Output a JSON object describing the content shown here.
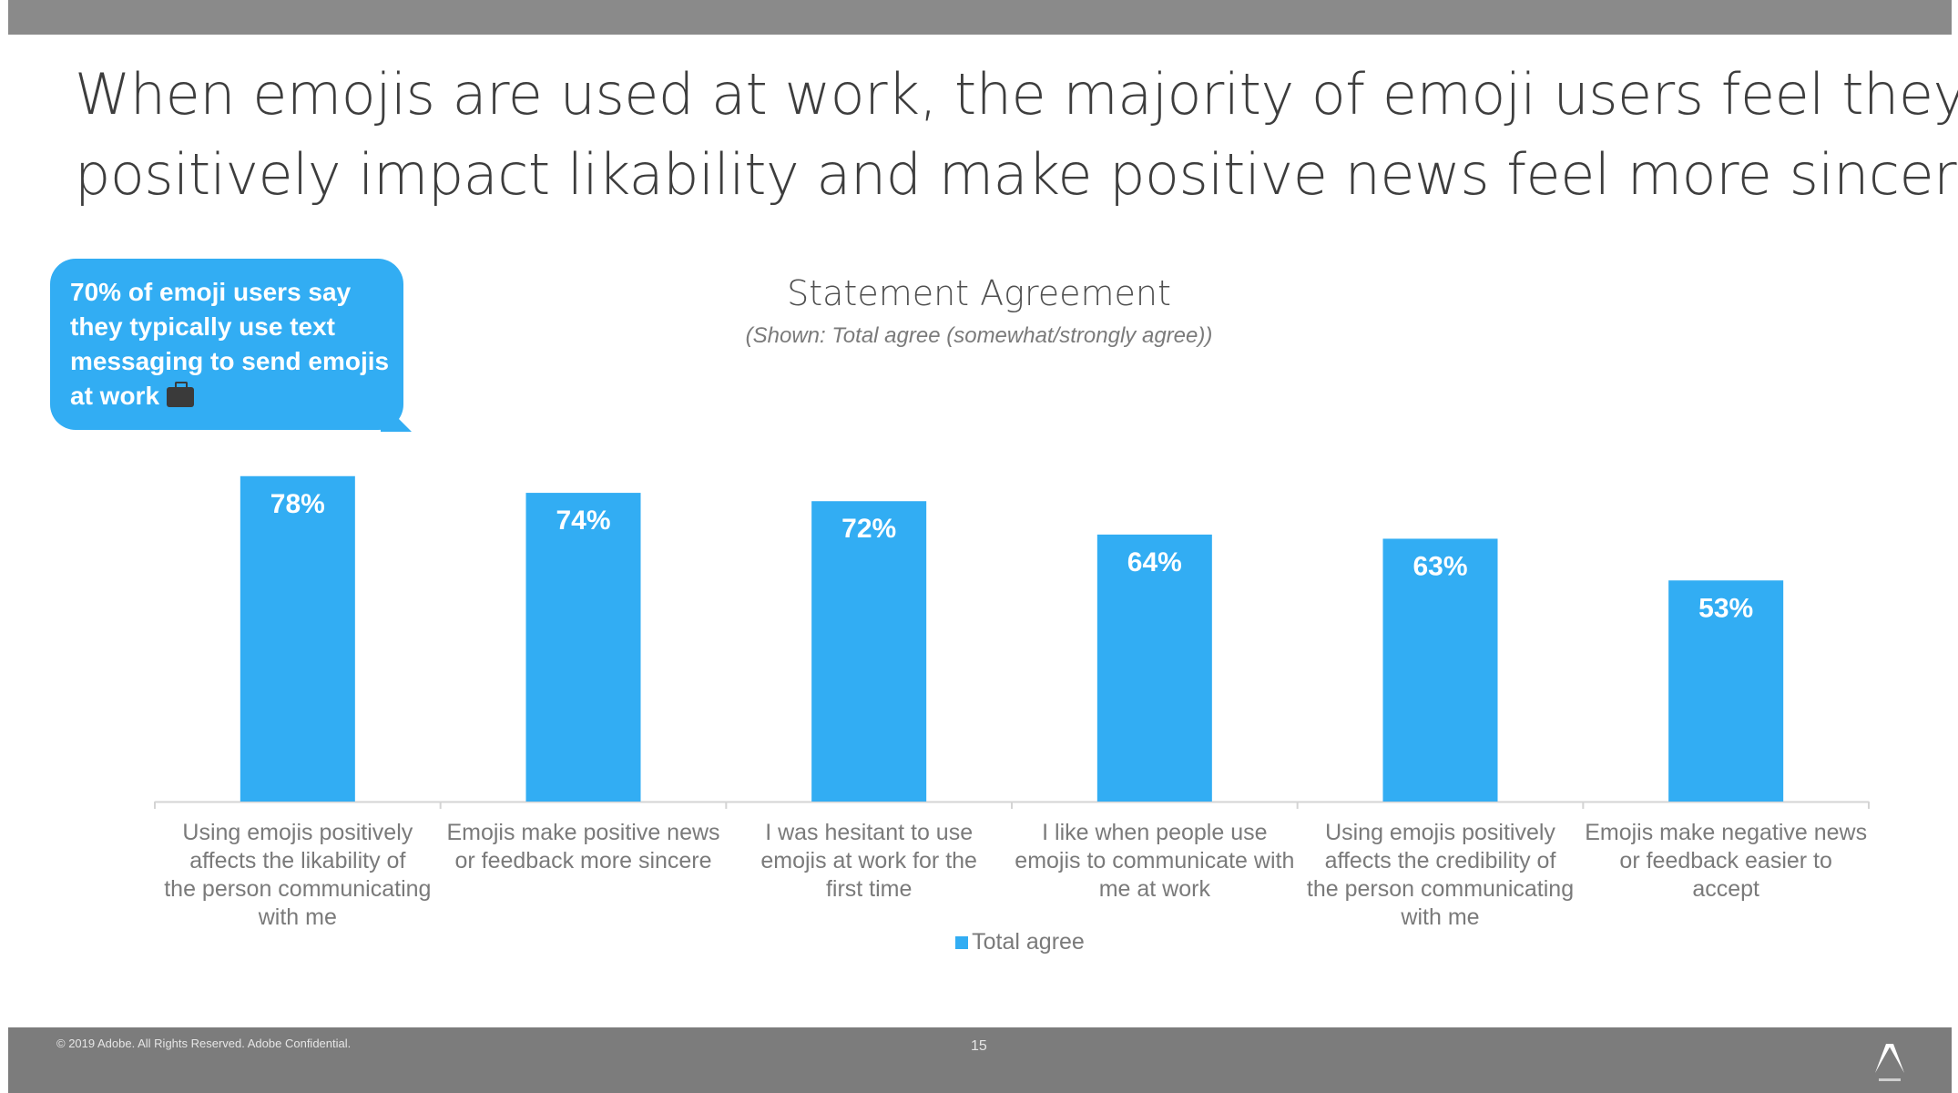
{
  "slide": {
    "headline_line1": "When emojis are used at work, the majority of emoji users feel they",
    "headline_line2": "positively impact likability and make positive news feel more sincere.",
    "callout": "70% of emoji users say they typically use text messaging to send emojis at work",
    "callout_icon": "briefcase-icon",
    "footer_copyright": "© 2019 Adobe. All Rights Reserved. Adobe Confidential.",
    "page_number": "15",
    "logo_icon": "adobe-logo-icon"
  },
  "colors": {
    "bar": "#32adf3",
    "bars_label": "#ffffff",
    "axis_text": "#7a7a7a"
  },
  "chart_data": {
    "type": "bar",
    "title": "Statement Agreement",
    "subtitle": "(Shown: Total agree (somewhat/strongly agree))",
    "categories": [
      "Using emojis positively affects the likability of the person communicating with me",
      "Emojis make positive news or feedback more sincere",
      "I was hesitant to use emojis at work for the first time",
      "I like when people use emojis to communicate with me at work",
      "Using emojis positively affects the credibility of the person communicating with me",
      "Emojis make negative news or feedback easier to accept"
    ],
    "series": [
      {
        "name": "Total agree",
        "values": [
          78,
          74,
          72,
          64,
          63,
          53
        ]
      }
    ],
    "value_labels": [
      "78%",
      "74%",
      "72%",
      "64%",
      "63%",
      "53%"
    ],
    "ylim": [
      0,
      100
    ],
    "xlabel": "",
    "ylabel": "",
    "legend": "bottom-center",
    "grid": false
  }
}
